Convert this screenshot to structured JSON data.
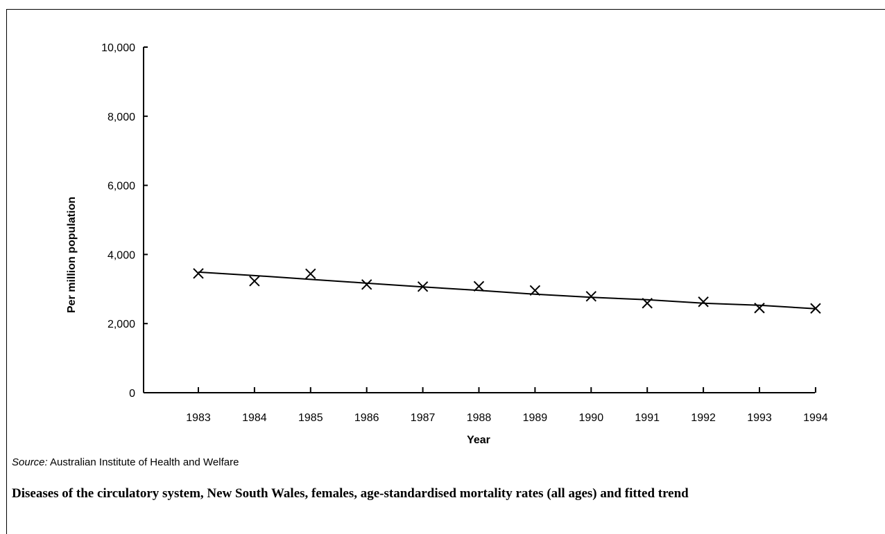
{
  "chart_data": {
    "type": "scatter",
    "title": "",
    "xlabel": "Year",
    "ylabel": "Per million population",
    "x": [
      "1983",
      "1984",
      "1985",
      "1986",
      "1987",
      "1988",
      "1989",
      "1990",
      "1991",
      "1992",
      "1993",
      "1994"
    ],
    "yticks": [
      "0",
      "2,000",
      "4,000",
      "6,000",
      "8,000",
      "10,000"
    ],
    "ylim": [
      0,
      10000
    ],
    "grid": false,
    "series": [
      {
        "values": [
          3450,
          3230,
          3440,
          3130,
          3070,
          3080,
          2960,
          2790,
          2590,
          2630,
          2450,
          2440
        ],
        "marker": "x",
        "line": false
      },
      {
        "values": [
          3490,
          3390,
          3280,
          3170,
          3060,
          2960,
          2850,
          2760,
          2690,
          2590,
          2530,
          2430
        ],
        "marker": "none",
        "line": true
      }
    ]
  },
  "source": {
    "label": "Source:",
    "text": " Australian Institute of Health and Welfare"
  },
  "caption": "Diseases of the circulatory system, New South Wales, females, age-standardised mortality rates (all ages) and fitted trend"
}
